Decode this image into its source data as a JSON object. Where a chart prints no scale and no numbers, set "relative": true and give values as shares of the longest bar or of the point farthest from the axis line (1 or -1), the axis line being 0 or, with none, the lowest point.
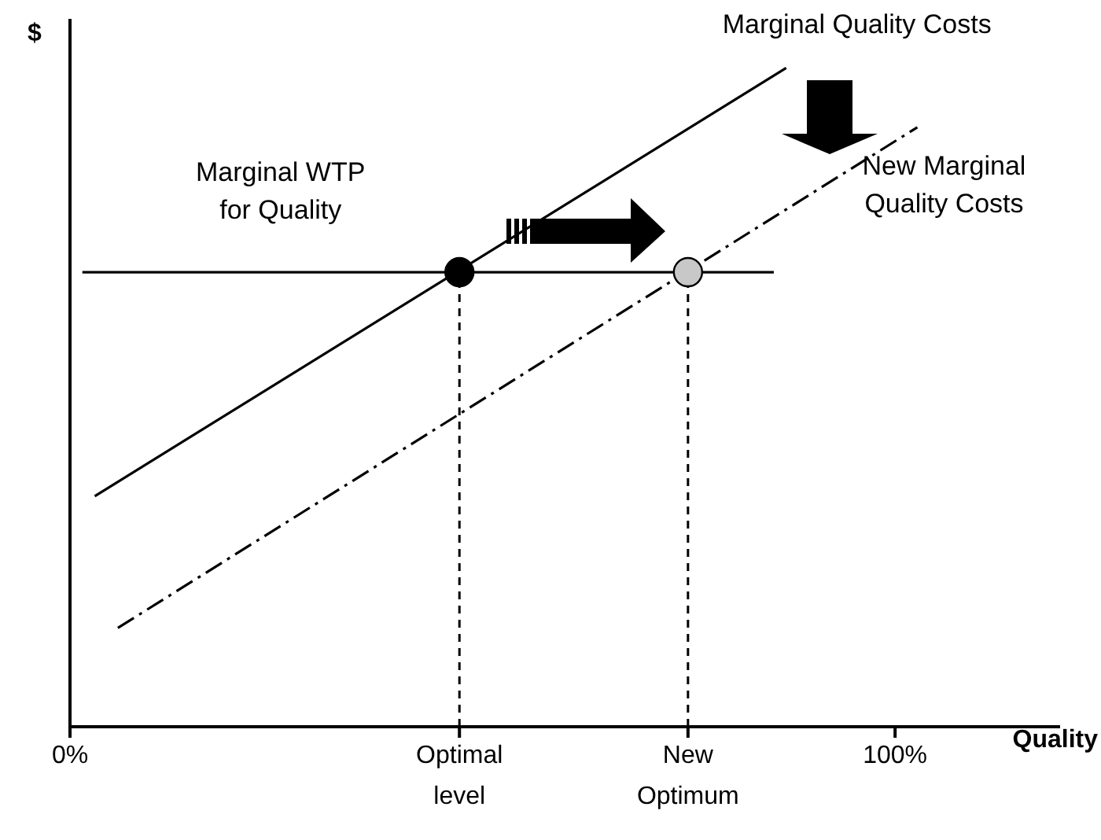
{
  "chart_data": {
    "type": "line",
    "relative": true,
    "xlabel": "Quality",
    "ylabel": "$",
    "xlim": [
      0,
      120
    ],
    "xticks": [
      {
        "value": 0,
        "label": "0%"
      },
      {
        "value": 47.2,
        "label": "Optimal level"
      },
      {
        "value": 74.9,
        "label": "New Optimum"
      },
      {
        "value": 100,
        "label": "100%"
      }
    ],
    "grid": false,
    "legend": false,
    "marker": "none",
    "series": [
      {
        "name": "Marginal Quality Costs",
        "color": "#000000",
        "x": [
          3.0,
          86.8
        ],
        "values": [
          0.35,
          1
        ],
        "line_style": "solid"
      },
      {
        "name": "New Marginal Quality Costs",
        "color": "#000000",
        "x": [
          5.8,
          102.7
        ],
        "values": [
          0.15,
          0.91
        ],
        "line_style": "dashdot"
      },
      {
        "name": "Marginal WTP for Quality",
        "color": "#000000",
        "x": [
          1.5,
          85.3
        ],
        "values": [
          0.69,
          0.69
        ],
        "line_style": "solid"
      },
      {
        "color": "#000000",
        "x": [
          47.2,
          47.2
        ],
        "values": [
          0,
          0.69
        ],
        "line_style": "dashed"
      },
      {
        "color": "#000000",
        "x": [
          74.9,
          74.9
        ],
        "values": [
          0,
          0.69
        ],
        "line_style": "dashed"
      },
      {
        "type": "scatter",
        "color": "#000000",
        "x": [
          47.2
        ],
        "values": [
          0.69
        ],
        "marker": "circle"
      },
      {
        "type": "scatter",
        "color": "#c8c8c8",
        "x": [
          74.9
        ],
        "values": [
          0.69
        ],
        "marker": "circle"
      }
    ]
  }
}
